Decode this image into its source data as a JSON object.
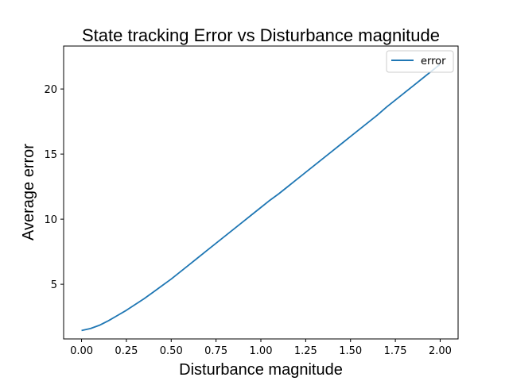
{
  "chart_data": {
    "type": "line",
    "title": "State tracking Error vs Disturbance magnitude",
    "xlabel": "Disturbance magnitude",
    "ylabel": "Average error",
    "xlim": [
      -0.1,
      2.1
    ],
    "ylim": [
      0.8,
      23.3
    ],
    "xticks": [
      0.0,
      0.25,
      0.5,
      0.75,
      1.0,
      1.25,
      1.5,
      1.75,
      2.0
    ],
    "xtick_labels": [
      "0.00",
      "0.25",
      "0.50",
      "0.75",
      "1.00",
      "1.25",
      "1.50",
      "1.75",
      "2.00"
    ],
    "yticks": [
      5,
      10,
      15,
      20
    ],
    "ytick_labels": [
      "5",
      "10",
      "15",
      "20"
    ],
    "grid": false,
    "legend_position": "top-right",
    "series": [
      {
        "name": "error",
        "color": "#1f77b4",
        "x": [
          0.0,
          0.05,
          0.1,
          0.15,
          0.2,
          0.25,
          0.3,
          0.35,
          0.4,
          0.45,
          0.5,
          0.55,
          0.6,
          0.65,
          0.7,
          0.75,
          0.8,
          0.85,
          0.9,
          0.95,
          1.0,
          1.05,
          1.1,
          1.15,
          1.2,
          1.25,
          1.3,
          1.35,
          1.4,
          1.45,
          1.5,
          1.55,
          1.6,
          1.65,
          1.7,
          1.75,
          1.8,
          1.85,
          1.9,
          1.95,
          2.0
        ],
        "y": [
          1.45,
          1.6,
          1.85,
          2.2,
          2.6,
          3.0,
          3.45,
          3.9,
          4.4,
          4.9,
          5.4,
          5.95,
          6.5,
          7.05,
          7.6,
          8.15,
          8.7,
          9.25,
          9.8,
          10.35,
          10.9,
          11.45,
          11.95,
          12.5,
          13.05,
          13.6,
          14.15,
          14.7,
          15.25,
          15.8,
          16.35,
          16.9,
          17.45,
          18.0,
          18.6,
          19.15,
          19.7,
          20.25,
          20.8,
          21.35,
          21.9
        ]
      }
    ]
  }
}
